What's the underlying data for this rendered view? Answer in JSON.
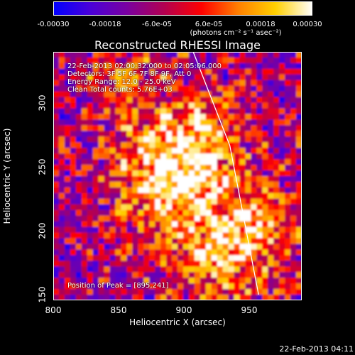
{
  "colorbar": {
    "tick_labels": [
      "-0.00030",
      "-0.00018",
      "-6.0e-05",
      "6.0e-05",
      "0.00018",
      "0.00030"
    ],
    "units": "(photons cm⁻² s⁻¹ asec⁻²)",
    "stops": [
      "#0000ff",
      "#4a00d8",
      "#7a00a0",
      "#b30050",
      "#ff0000",
      "#ff8000",
      "#ffd000",
      "#ffffff"
    ]
  },
  "plot": {
    "title": "Reconstructed RHESSI Image",
    "info_lines": [
      "22-Feb-2013 02:00:32.000 to 02:05:06.000",
      "Detectors: 3F 5F 6F 7F 8F 9F, Att 0",
      "Energy Range: 12.0 - 25.0 keV",
      "Clean     Total counts: 5.76E+03"
    ],
    "peak_text": "Position of Peak = [895,241]",
    "x_axis": {
      "label": "Heliocentric X (arcsec)",
      "range": [
        800,
        990
      ],
      "ticks": [
        "800",
        "850",
        "900",
        "950"
      ]
    },
    "y_axis": {
      "label": "Heliocentric Y (arcsec)",
      "range": [
        146,
        321
      ],
      "ticks": [
        "150",
        "200",
        "250",
        "300"
      ]
    },
    "limb": [
      [
        907,
        321
      ],
      [
        935,
        255
      ],
      [
        957,
        150
      ]
    ]
  },
  "timestamp": "22-Feb-2013 04:11"
}
